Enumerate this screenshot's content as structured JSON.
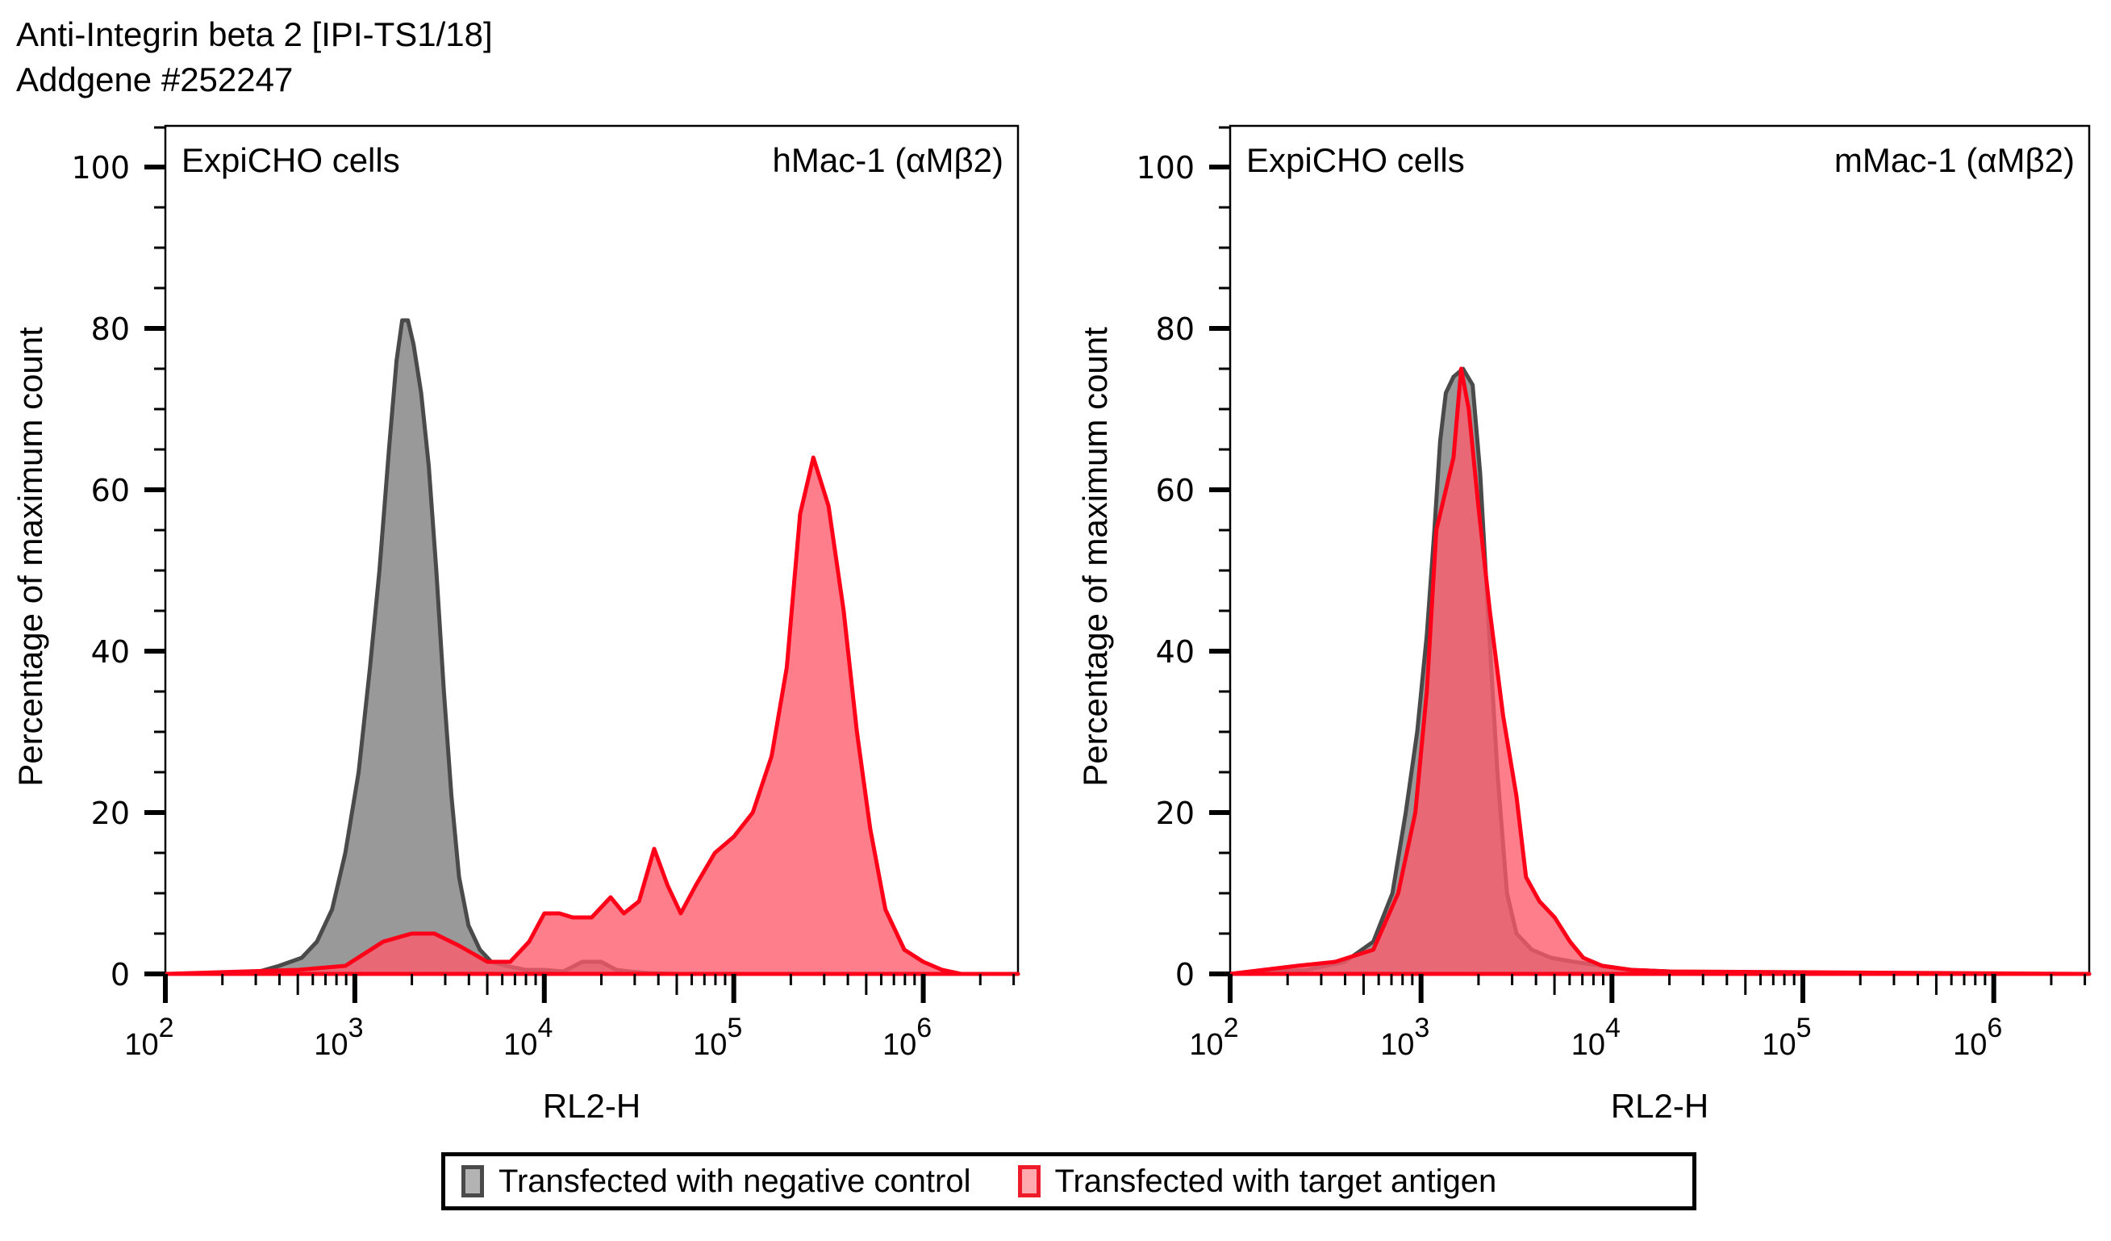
{
  "header": {
    "title_line1": "Anti-Integrin beta 2 [IPI-TS1/18]",
    "title_line2": "Addgene #252247"
  },
  "legend": {
    "items": [
      {
        "label": "Transfected with negative control",
        "fill": "#b3b3b3",
        "edge": "#4a4a4a"
      },
      {
        "label": "Transfected with target antigen",
        "fill": "#ffaaaf",
        "edge": "#ee1c2b"
      }
    ]
  },
  "colors": {
    "negative_fill": "#999999",
    "negative_line": "#4a4a4a",
    "target_fill": "#ff5a6a",
    "target_fill_opacity": 0.78,
    "target_line": "#ff0018"
  },
  "chart_data": [
    {
      "type": "area",
      "title_left": "ExpiCHO cells",
      "title_right": "hMac-1 (αMβ2)",
      "xlabel": "RL2-H",
      "ylabel": "Percentage of maximum count",
      "xscale": "log10",
      "xlim_log10": [
        2.0,
        6.5
      ],
      "ylim": [
        0,
        100
      ],
      "yticks": [
        0,
        20,
        40,
        60,
        80,
        100
      ],
      "xtick_labels": [
        {
          "base": "10",
          "exp": "2",
          "log10": 2
        },
        {
          "base": "10",
          "exp": "3",
          "log10": 3
        },
        {
          "base": "10",
          "exp": "4",
          "log10": 4
        },
        {
          "base": "10",
          "exp": "5",
          "log10": 5
        },
        {
          "base": "10",
          "exp": "6",
          "log10": 6
        }
      ],
      "series": [
        {
          "name": "Transfected with negative control",
          "log10_x": [
            2.0,
            2.45,
            2.6,
            2.72,
            2.8,
            2.88,
            2.95,
            3.02,
            3.08,
            3.13,
            3.18,
            3.22,
            3.25,
            3.28,
            3.31,
            3.35,
            3.39,
            3.43,
            3.47,
            3.51,
            3.55,
            3.6,
            3.66,
            3.72,
            3.8,
            3.9,
            4.0,
            4.1,
            4.2,
            4.3,
            4.38,
            4.45,
            4.55,
            4.7,
            6.5
          ],
          "values": [
            0,
            0,
            1,
            2,
            4,
            8,
            15,
            25,
            38,
            50,
            65,
            76,
            81,
            81,
            78,
            72,
            63,
            50,
            35,
            22,
            12,
            6,
            3,
            1.5,
            1,
            0.5,
            0.5,
            0.3,
            1.5,
            1.5,
            0.5,
            0.3,
            0.1,
            0,
            0
          ]
        },
        {
          "name": "Transfected with target antigen",
          "log10_x": [
            2.0,
            2.7,
            2.95,
            3.15,
            3.3,
            3.42,
            3.55,
            3.7,
            3.82,
            3.92,
            4.0,
            4.08,
            4.15,
            4.25,
            4.35,
            4.42,
            4.5,
            4.58,
            4.65,
            4.72,
            4.8,
            4.9,
            5.0,
            5.1,
            5.2,
            5.28,
            5.35,
            5.42,
            5.5,
            5.58,
            5.65,
            5.72,
            5.8,
            5.9,
            6.0,
            6.1,
            6.2,
            6.5
          ],
          "values": [
            0,
            0.5,
            1,
            4,
            5,
            5,
            3.5,
            1.5,
            1.5,
            4,
            7.5,
            7.5,
            7,
            7,
            9.5,
            7.5,
            9,
            15.5,
            11,
            7.5,
            11,
            15,
            17,
            20,
            27,
            38,
            57,
            64,
            58,
            45,
            30,
            18,
            8,
            3,
            1.5,
            0.5,
            0,
            0
          ]
        }
      ]
    },
    {
      "type": "area",
      "title_left": "ExpiCHO cells",
      "title_right": "mMac-1 (αMβ2)",
      "xlabel": "RL2-H",
      "ylabel": "Percentage of maximum count",
      "xscale": "log10",
      "xlim_log10": [
        2.0,
        6.5
      ],
      "ylim": [
        0,
        100
      ],
      "yticks": [
        0,
        20,
        40,
        60,
        80,
        100
      ],
      "xtick_labels": [
        {
          "base": "10",
          "exp": "2",
          "log10": 2
        },
        {
          "base": "10",
          "exp": "3",
          "log10": 3
        },
        {
          "base": "10",
          "exp": "4",
          "log10": 4
        },
        {
          "base": "10",
          "exp": "5",
          "log10": 5
        },
        {
          "base": "10",
          "exp": "6",
          "log10": 6
        }
      ],
      "series": [
        {
          "name": "Transfected with negative control",
          "log10_x": [
            2.0,
            2.4,
            2.6,
            2.75,
            2.85,
            2.92,
            2.98,
            3.03,
            3.07,
            3.1,
            3.13,
            3.17,
            3.22,
            3.27,
            3.31,
            3.35,
            3.4,
            3.45,
            3.5,
            3.58,
            3.68,
            3.8,
            3.95,
            4.1,
            4.3,
            4.5,
            6.5
          ],
          "values": [
            0,
            0.5,
            1.5,
            4,
            10,
            20,
            30,
            42,
            55,
            66,
            72,
            74,
            75,
            73,
            62,
            45,
            25,
            10,
            5,
            3,
            2,
            1.5,
            1,
            0.5,
            0.3,
            0,
            0
          ]
        },
        {
          "name": "Transfected with target antigen",
          "log10_x": [
            2.0,
            2.35,
            2.55,
            2.75,
            2.88,
            2.97,
            3.03,
            3.08,
            3.13,
            3.17,
            3.21,
            3.25,
            3.3,
            3.36,
            3.43,
            3.5,
            3.55,
            3.62,
            3.7,
            3.78,
            3.85,
            3.95,
            4.1,
            4.3,
            6.5
          ],
          "values": [
            0,
            1,
            1.5,
            3,
            10,
            20,
            35,
            55,
            60,
            64,
            75,
            70,
            58,
            45,
            32,
            22,
            12,
            9,
            7,
            4,
            2,
            1,
            0.5,
            0.3,
            0
          ]
        }
      ]
    }
  ]
}
